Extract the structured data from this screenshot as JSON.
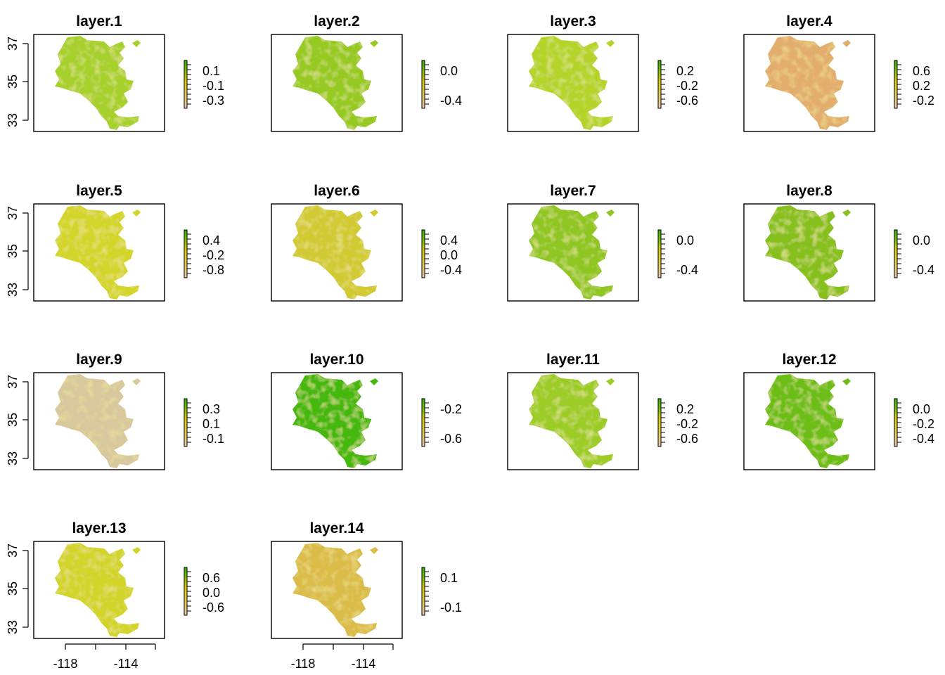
{
  "figure": {
    "x_axis_ticks": [
      "-118",
      "-114"
    ],
    "y_axis_ticks": [
      "33",
      "35",
      "37"
    ],
    "colors": {
      "low": "#eec7b0",
      "mid": "#e0d000",
      "high": "#2db400"
    },
    "panels": [
      {
        "title": "layer.1",
        "legend_ticks": [
          "0.1",
          "-0.1",
          "-0.3"
        ],
        "dominant_color": "#a6d02c"
      },
      {
        "title": "layer.2",
        "legend_ticks": [
          "0.0",
          "-0.4"
        ],
        "dominant_color": "#96ca22"
      },
      {
        "title": "layer.3",
        "legend_ticks": [
          "0.2",
          "-0.2",
          "-0.6"
        ],
        "dominant_color": "#b4d42c"
      },
      {
        "title": "layer.4",
        "legend_ticks": [
          "0.6",
          "0.2",
          "-0.2"
        ],
        "dominant_color": "#e3ad6e"
      },
      {
        "title": "layer.5",
        "legend_ticks": [
          "0.4",
          "-0.2",
          "-0.8"
        ],
        "dominant_color": "#d4d52c"
      },
      {
        "title": "layer.6",
        "legend_ticks": [
          "0.4",
          "0.0",
          "-0.4"
        ],
        "dominant_color": "#d2ca30"
      },
      {
        "title": "layer.7",
        "legend_ticks": [
          "0.0",
          "-0.4"
        ],
        "dominant_color": "#8fc624"
      },
      {
        "title": "layer.8",
        "legend_ticks": [
          "0.0",
          "-0.4"
        ],
        "dominant_color": "#86c01e"
      },
      {
        "title": "layer.9",
        "legend_ticks": [
          "0.3",
          "0.1",
          "-0.1"
        ],
        "dominant_color": "#d8c89e"
      },
      {
        "title": "layer.10",
        "legend_ticks": [
          "-0.2",
          "-0.6"
        ],
        "dominant_color": "#45b80a"
      },
      {
        "title": "layer.11",
        "legend_ticks": [
          "0.2",
          "-0.2",
          "-0.6"
        ],
        "dominant_color": "#9ccc26"
      },
      {
        "title": "layer.12",
        "legend_ticks": [
          "0.0",
          "-0.2",
          "-0.4"
        ],
        "dominant_color": "#6cbe14"
      },
      {
        "title": "layer.13",
        "legend_ticks": [
          "0.6",
          "0.0",
          "-0.6"
        ],
        "dominant_color": "#d3d42a"
      },
      {
        "title": "layer.14",
        "legend_ticks": [
          "0.1",
          "-0.1"
        ],
        "dominant_color": "#dcbc48"
      }
    ]
  }
}
